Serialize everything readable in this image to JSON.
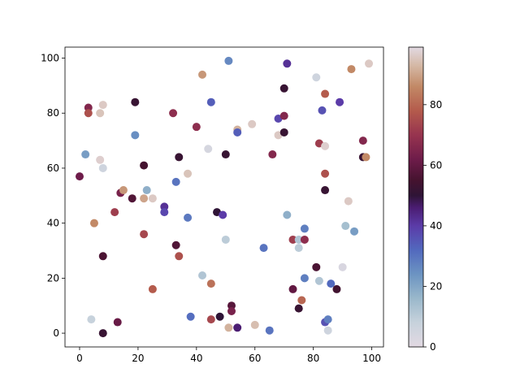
{
  "chart_data": {
    "type": "scatter",
    "title": "",
    "xlabel": "",
    "ylabel": "",
    "xlim": [
      -5,
      104
    ],
    "ylim": [
      -5,
      104
    ],
    "x_ticks": [
      0,
      20,
      40,
      60,
      80,
      100
    ],
    "y_ticks": [
      0,
      20,
      40,
      60,
      80,
      100
    ],
    "grid": false,
    "colormap": "twilight_shifted (truncated 0-99)",
    "colorbar": {
      "range": [
        0,
        99
      ],
      "ticks": [
        0,
        20,
        40,
        60,
        80
      ],
      "stops": [
        {
          "v": 0,
          "color": "#e2d9e2"
        },
        {
          "v": 8,
          "color": "#c7d2dc"
        },
        {
          "v": 16,
          "color": "#9ab8cb"
        },
        {
          "v": 24,
          "color": "#6c94c2"
        },
        {
          "v": 32,
          "color": "#5269be"
        },
        {
          "v": 40,
          "color": "#5b3ba8"
        },
        {
          "v": 46,
          "color": "#4b1d72"
        },
        {
          "v": 50,
          "color": "#2f1436"
        },
        {
          "v": 55,
          "color": "#45132f"
        },
        {
          "v": 62,
          "color": "#6e1c4a"
        },
        {
          "v": 70,
          "color": "#97344f"
        },
        {
          "v": 78,
          "color": "#b45b4c"
        },
        {
          "v": 86,
          "color": "#c28966"
        },
        {
          "v": 93,
          "color": "#d5b9a6"
        },
        {
          "v": 99,
          "color": "#e2d9e2"
        }
      ]
    },
    "points": [
      {
        "x": 0,
        "y": 57,
        "c": 62
      },
      {
        "x": 2,
        "y": 65,
        "c": 22
      },
      {
        "x": 3,
        "y": 82,
        "c": 66
      },
      {
        "x": 3,
        "y": 80,
        "c": 76
      },
      {
        "x": 4,
        "y": 5,
        "c": 8
      },
      {
        "x": 5,
        "y": 40,
        "c": 86
      },
      {
        "x": 7,
        "y": 80,
        "c": 95
      },
      {
        "x": 7,
        "y": 63,
        "c": 97
      },
      {
        "x": 8,
        "y": 83,
        "c": 96
      },
      {
        "x": 8,
        "y": 60,
        "c": 6
      },
      {
        "x": 8,
        "y": 28,
        "c": 56
      },
      {
        "x": 8,
        "y": 0,
        "c": 52
      },
      {
        "x": 12,
        "y": 44,
        "c": 72
      },
      {
        "x": 13,
        "y": 4,
        "c": 61
      },
      {
        "x": 14,
        "y": 51,
        "c": 64
      },
      {
        "x": 15,
        "y": 52,
        "c": 88
      },
      {
        "x": 18,
        "y": 49,
        "c": 57
      },
      {
        "x": 19,
        "y": 84,
        "c": 52
      },
      {
        "x": 19,
        "y": 72,
        "c": 25
      },
      {
        "x": 22,
        "y": 61,
        "c": 55
      },
      {
        "x": 22,
        "y": 49,
        "c": 90
      },
      {
        "x": 22,
        "y": 36,
        "c": 74
      },
      {
        "x": 23,
        "y": 52,
        "c": 18
      },
      {
        "x": 25,
        "y": 49,
        "c": 96
      },
      {
        "x": 25,
        "y": 16,
        "c": 78
      },
      {
        "x": 29,
        "y": 46,
        "c": 42
      },
      {
        "x": 29,
        "y": 44,
        "c": 38
      },
      {
        "x": 32,
        "y": 80,
        "c": 68
      },
      {
        "x": 33,
        "y": 55,
        "c": 30
      },
      {
        "x": 33,
        "y": 32,
        "c": 57
      },
      {
        "x": 34,
        "y": 64,
        "c": 52
      },
      {
        "x": 34,
        "y": 28,
        "c": 76
      },
      {
        "x": 37,
        "y": 58,
        "c": 95
      },
      {
        "x": 37,
        "y": 42,
        "c": 29
      },
      {
        "x": 38,
        "y": 6,
        "c": 31
      },
      {
        "x": 40,
        "y": 75,
        "c": 68
      },
      {
        "x": 42,
        "y": 94,
        "c": 88
      },
      {
        "x": 42,
        "y": 21,
        "c": 12
      },
      {
        "x": 44,
        "y": 67,
        "c": 4
      },
      {
        "x": 45,
        "y": 84,
        "c": 34
      },
      {
        "x": 45,
        "y": 18,
        "c": 82
      },
      {
        "x": 45,
        "y": 5,
        "c": 74
      },
      {
        "x": 47,
        "y": 44,
        "c": 50
      },
      {
        "x": 48,
        "y": 6,
        "c": 50
      },
      {
        "x": 49,
        "y": 43,
        "c": 40
      },
      {
        "x": 50,
        "y": 65,
        "c": 52
      },
      {
        "x": 50,
        "y": 34,
        "c": 10
      },
      {
        "x": 51,
        "y": 99,
        "c": 26
      },
      {
        "x": 51,
        "y": 2,
        "c": 92
      },
      {
        "x": 52,
        "y": 10,
        "c": 58
      },
      {
        "x": 52,
        "y": 8,
        "c": 64
      },
      {
        "x": 54,
        "y": 74,
        "c": 92
      },
      {
        "x": 54,
        "y": 73,
        "c": 34
      },
      {
        "x": 54,
        "y": 2,
        "c": 46
      },
      {
        "x": 59,
        "y": 76,
        "c": 96
      },
      {
        "x": 60,
        "y": 3,
        "c": 94
      },
      {
        "x": 63,
        "y": 31,
        "c": 30
      },
      {
        "x": 65,
        "y": 1,
        "c": 30
      },
      {
        "x": 66,
        "y": 65,
        "c": 66
      },
      {
        "x": 68,
        "y": 78,
        "c": 38
      },
      {
        "x": 68,
        "y": 72,
        "c": 96
      },
      {
        "x": 70,
        "y": 89,
        "c": 52
      },
      {
        "x": 70,
        "y": 79,
        "c": 66
      },
      {
        "x": 70,
        "y": 73,
        "c": 52
      },
      {
        "x": 71,
        "y": 98,
        "c": 42
      },
      {
        "x": 71,
        "y": 43,
        "c": 18
      },
      {
        "x": 73,
        "y": 34,
        "c": 72
      },
      {
        "x": 73,
        "y": 16,
        "c": 60
      },
      {
        "x": 75,
        "y": 34,
        "c": 12
      },
      {
        "x": 75,
        "y": 31,
        "c": 10
      },
      {
        "x": 75,
        "y": 9,
        "c": 52
      },
      {
        "x": 76,
        "y": 12,
        "c": 80
      },
      {
        "x": 77,
        "y": 38,
        "c": 28
      },
      {
        "x": 77,
        "y": 34,
        "c": 68
      },
      {
        "x": 77,
        "y": 20,
        "c": 28
      },
      {
        "x": 81,
        "y": 93,
        "c": 6
      },
      {
        "x": 81,
        "y": 24,
        "c": 56
      },
      {
        "x": 82,
        "y": 69,
        "c": 72
      },
      {
        "x": 82,
        "y": 19,
        "c": 12
      },
      {
        "x": 83,
        "y": 81,
        "c": 36
      },
      {
        "x": 84,
        "y": 87,
        "c": 78
      },
      {
        "x": 84,
        "y": 68,
        "c": 97
      },
      {
        "x": 84,
        "y": 58,
        "c": 76
      },
      {
        "x": 84,
        "y": 52,
        "c": 52
      },
      {
        "x": 84,
        "y": 4,
        "c": 36
      },
      {
        "x": 85,
        "y": 5,
        "c": 28
      },
      {
        "x": 85,
        "y": 1,
        "c": 6
      },
      {
        "x": 86,
        "y": 18,
        "c": 32
      },
      {
        "x": 88,
        "y": 16,
        "c": 54
      },
      {
        "x": 89,
        "y": 84,
        "c": 40
      },
      {
        "x": 90,
        "y": 24,
        "c": 3
      },
      {
        "x": 91,
        "y": 39,
        "c": 14
      },
      {
        "x": 92,
        "y": 48,
        "c": 96
      },
      {
        "x": 93,
        "y": 96,
        "c": 86
      },
      {
        "x": 94,
        "y": 37,
        "c": 22
      },
      {
        "x": 97,
        "y": 70,
        "c": 66
      },
      {
        "x": 97,
        "y": 64,
        "c": 52
      },
      {
        "x": 98,
        "y": 64,
        "c": 86
      },
      {
        "x": 99,
        "y": 98,
        "c": 96
      }
    ]
  }
}
